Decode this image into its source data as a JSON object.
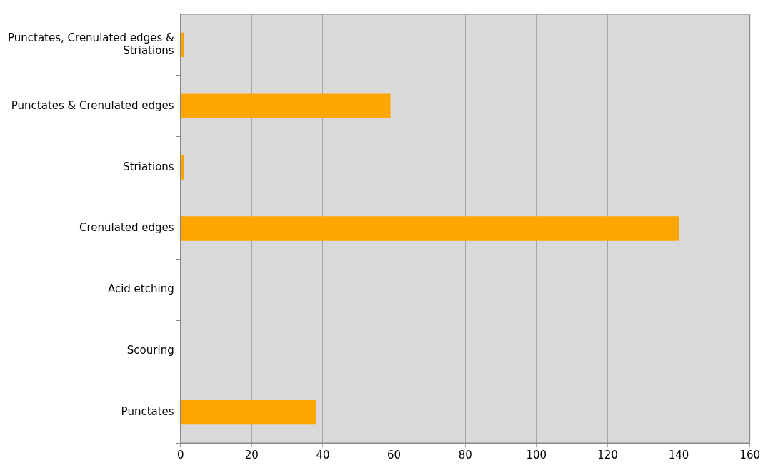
{
  "chart_data": {
    "type": "bar",
    "orientation": "horizontal",
    "categories": [
      "Punctates, Crenulated edges & Striations",
      "Punctates & Crenulated edges",
      "Striations",
      "Crenulated edges",
      "Acid etching",
      "Scouring",
      "Punctates"
    ],
    "values": [
      1,
      59,
      1,
      140,
      0,
      0,
      38
    ],
    "color": "#ffa500",
    "xlim": [
      0,
      160
    ],
    "xticks": [
      0,
      20,
      40,
      60,
      80,
      100,
      120,
      140,
      160
    ],
    "grid": "x",
    "legend": false
  }
}
